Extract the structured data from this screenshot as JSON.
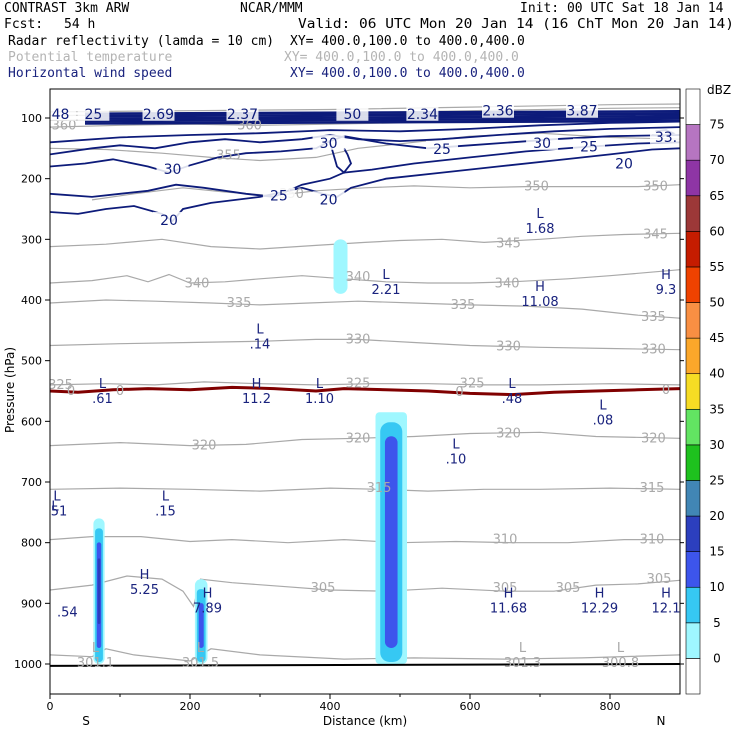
{
  "header": {
    "model": "CONTRAST  3km ARW",
    "org": "NCAR/MMM",
    "init": "Init: 00 UTC Sat 18 Jan 14",
    "fcst_label": "Fcst:",
    "fcst_value": "54 h",
    "valid": "Valid: 06 UTC Mon 20 Jan 14 (16 ChT Mon 20 Jan 14)",
    "field1": "Radar reflectivity (lamda = 10 cm)",
    "field1_xy": "XY= 400.0,100.0 to 400.0,400.0",
    "field2": "Potential temperature",
    "field2_xy": "XY= 400.0,100.0 to 400.0,400.0",
    "field3": "Horizontal wind speed",
    "field3_xy": "XY= 400.0,100.0 to 400.0,400.0"
  },
  "chart_data": {
    "type": "heatmap",
    "title": "Vertical cross-section: radar reflectivity, potential temperature, horizontal wind speed",
    "xlabel": "Distance (km)",
    "ylabel": "Pressure (hPa)",
    "xlim": [
      0,
      900
    ],
    "ylim": [
      1050,
      70
    ],
    "x_ticks": [
      0,
      200,
      400,
      600,
      800
    ],
    "x_tick_labels": [
      "0",
      "200",
      "400",
      "600",
      "800"
    ],
    "y_ticks": [
      100,
      200,
      300,
      400,
      500,
      600,
      700,
      800,
      900,
      1000
    ],
    "y_tick_labels": [
      "100",
      "200",
      "300",
      "400",
      "500",
      "600",
      "700",
      "800",
      "900",
      "1000"
    ],
    "end_labels": {
      "left": "S",
      "right": "N"
    },
    "colorbar": {
      "title": "dBZ",
      "levels": [
        "0",
        "5",
        "10",
        "15",
        "20",
        "25",
        "30",
        "35",
        "40",
        "45",
        "50",
        "55",
        "60",
        "65",
        "70",
        "75"
      ],
      "colors": [
        "#ffffff",
        "#9ff7ff",
        "#36c8f3",
        "#3d55ec",
        "#2c3fbe",
        "#4186b5",
        "#1ec11e",
        "#62e462",
        "#f6dc24",
        "#fba72a",
        "#f98f43",
        "#ef4200",
        "#c51c00",
        "#9c3838",
        "#8e35a5",
        "#b675c1",
        "#ffffff"
      ]
    },
    "reflectivity_cells": [
      {
        "x": [
          62,
          78
        ],
        "p_top": 760,
        "p_base": 1000,
        "max_dbz": 20
      },
      {
        "x": [
          207,
          225
        ],
        "p_top": 860,
        "p_base": 1000,
        "max_dbz": 15
      },
      {
        "x": [
          465,
          510
        ],
        "p_top": 585,
        "p_base": 1000,
        "max_dbz": 15
      },
      {
        "x": [
          405,
          425
        ],
        "p_top": 300,
        "p_base": 390,
        "max_dbz": 5
      }
    ],
    "theta_contours": [
      "300",
      "305",
      "310",
      "315",
      "320",
      "325",
      "330",
      "335",
      "340",
      "345",
      "350",
      "355",
      "360"
    ],
    "theta_labels": [
      {
        "text": "305",
        "x": 390,
        "p": 875
      },
      {
        "text": "305",
        "x": 650,
        "p": 875
      },
      {
        "text": "305",
        "x": 740,
        "p": 875
      },
      {
        "text": "305",
        "x": 870,
        "p": 860
      },
      {
        "text": "310",
        "x": 650,
        "p": 795
      },
      {
        "text": "310",
        "x": 860,
        "p": 795
      },
      {
        "text": "315",
        "x": 470,
        "p": 710
      },
      {
        "text": "315",
        "x": 860,
        "p": 710
      },
      {
        "text": "320",
        "x": 220,
        "p": 640
      },
      {
        "text": "320",
        "x": 440,
        "p": 628
      },
      {
        "text": "320",
        "x": 655,
        "p": 620
      },
      {
        "text": "320",
        "x": 862,
        "p": 628
      },
      {
        "text": "325",
        "x": 440,
        "p": 538
      },
      {
        "text": "325",
        "x": 603,
        "p": 538
      },
      {
        "text": "325",
        "x": 15,
        "p": 540
      },
      {
        "text": "330",
        "x": 440,
        "p": 465
      },
      {
        "text": "330",
        "x": 655,
        "p": 477
      },
      {
        "text": "330",
        "x": 862,
        "p": 482
      },
      {
        "text": "335",
        "x": 270,
        "p": 405
      },
      {
        "text": "335",
        "x": 590,
        "p": 408
      },
      {
        "text": "335",
        "x": 862,
        "p": 428
      },
      {
        "text": "340",
        "x": 210,
        "p": 373
      },
      {
        "text": "340",
        "x": 440,
        "p": 362
      },
      {
        "text": "340",
        "x": 653,
        "p": 373
      },
      {
        "text": "345",
        "x": 655,
        "p": 307
      },
      {
        "text": "345",
        "x": 865,
        "p": 292
      },
      {
        "text": "350",
        "x": 345,
        "p": 225
      },
      {
        "text": "350",
        "x": 695,
        "p": 213
      },
      {
        "text": "350",
        "x": 865,
        "p": 213
      },
      {
        "text": "355",
        "x": 255,
        "p": 162
      },
      {
        "text": "360",
        "x": 20,
        "p": 112
      },
      {
        "text": "360",
        "x": 285,
        "p": 112
      }
    ],
    "wind_labels": [
      {
        "text": "20",
        "x": 170,
        "p": 268
      },
      {
        "text": "20",
        "x": 398,
        "p": 234
      },
      {
        "text": "20",
        "x": 820,
        "p": 175
      },
      {
        "text": "25",
        "x": 327,
        "p": 228
      },
      {
        "text": "25",
        "x": 560,
        "p": 151
      },
      {
        "text": "25",
        "x": 770,
        "p": 147
      },
      {
        "text": "30",
        "x": 175,
        "p": 184
      },
      {
        "text": "30",
        "x": 398,
        "p": 141
      },
      {
        "text": "30",
        "x": 703,
        "p": 141
      },
      {
        "text": "33.",
        "x": 880,
        "p": 131
      },
      {
        "text": "48",
        "x": 15,
        "p": 93
      },
      {
        "text": "25",
        "x": 62,
        "p": 93
      },
      {
        "text": "2.69",
        "x": 155,
        "p": 93
      },
      {
        "text": "2.37",
        "x": 275,
        "p": 93
      },
      {
        "text": "50",
        "x": 432,
        "p": 93
      },
      {
        "text": "2.34",
        "x": 532,
        "p": 93
      },
      {
        "text": "2.36",
        "x": 640,
        "p": 88
      },
      {
        "text": "3.87",
        "x": 760,
        "p": 88
      }
    ],
    "freezing_level": {
      "label": "0",
      "p_approx": 550
    },
    "pressure_extrema": [
      {
        "kind": "L",
        "value": ".61",
        "x": 75,
        "p": 555
      },
      {
        "kind": "H",
        "value": "11.2",
        "x": 295,
        "p": 555
      },
      {
        "kind": "L",
        "value": "1.10",
        "x": 385,
        "p": 555
      },
      {
        "kind": "L",
        "value": ".48",
        "x": 660,
        "p": 555
      },
      {
        "kind": "L",
        "value": ".08",
        "x": 790,
        "p": 590
      },
      {
        "kind": "L",
        "value": ".10",
        "x": 580,
        "p": 655
      },
      {
        "kind": "L",
        "value": ".14",
        "x": 300,
        "p": 465
      },
      {
        "kind": "L",
        "value": "2.21",
        "x": 480,
        "p": 375
      },
      {
        "kind": "H",
        "value": "11.08",
        "x": 700,
        "p": 395
      },
      {
        "kind": "H",
        "value": "9.3",
        "x": 880,
        "p": 375
      },
      {
        "kind": "L",
        "value": "1.68",
        "x": 700,
        "p": 275
      },
      {
        "kind": "L",
        "value": ".15",
        "x": 165,
        "p": 740
      },
      {
        "kind": "L",
        "value": ".51",
        "x": 10,
        "p": 740
      },
      {
        "kind": "H",
        "value": "5.25",
        "x": 135,
        "p": 870
      },
      {
        "kind": "H",
        "value": "7.89",
        "x": 225,
        "p": 900
      },
      {
        "kind": "H",
        "value": "11.68",
        "x": 655,
        "p": 900
      },
      {
        "kind": "H",
        "value": "12.29",
        "x": 785,
        "p": 900
      },
      {
        "kind": "H",
        "value": "12.1",
        "x": 880,
        "p": 900
      },
      {
        "kind": "L",
        "value": "301.1",
        "x": 65,
        "p": 990
      },
      {
        "kind": "L",
        "value": "301.5",
        "x": 215,
        "p": 990
      },
      {
        "kind": "L",
        "value": "301.3",
        "x": 675,
        "p": 990
      },
      {
        "kind": "L",
        "value": "300.8",
        "x": 815,
        "p": 990
      }
    ],
    "partial_left_labels": [
      {
        "text": "L",
        "x": 2,
        "p": 740
      },
      {
        "text": ".54",
        "x": 10,
        "p": 915
      }
    ]
  }
}
